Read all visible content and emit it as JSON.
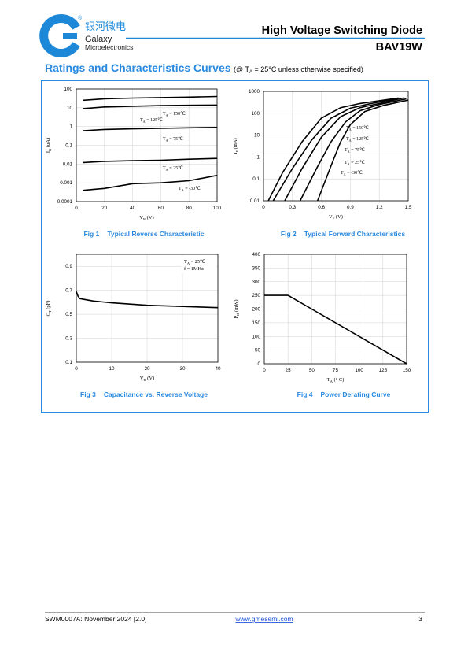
{
  "header": {
    "registered": "®",
    "brand_cn": "银河微电",
    "brand": "Galaxy",
    "brand_sub": "Microelectronics",
    "title": "High Voltage Switching Diode",
    "part": "BAV19W"
  },
  "section": {
    "title": "Ratings and Characteristics Curves",
    "condition": [
      "(@ T",
      "A",
      " = 25°C unless otherwise specified)"
    ]
  },
  "chart_data": [
    {
      "type": "line",
      "figure": "Fig 1",
      "title": "Typical Reverse Characteristic",
      "x_label": "VR (V)",
      "y_label": "IR (uA)",
      "log_y": true,
      "grid": true,
      "xlim": [
        0,
        100
      ],
      "xticks": [
        0,
        20,
        40,
        60,
        80,
        100
      ],
      "ylim": [
        0.0001,
        100
      ],
      "yticks": [
        0.0001,
        0.001,
        0.01,
        0.1,
        1,
        10,
        100
      ],
      "x": [
        5,
        20,
        40,
        60,
        80,
        100
      ],
      "series": [
        {
          "name": "TA = 150℃",
          "color": "#000000",
          "values": [
            25,
            30,
            33,
            35,
            37,
            40
          ]
        },
        {
          "name": "TA = 125℃",
          "color": "#000000",
          "values": [
            9,
            11,
            12,
            13,
            13.5,
            14
          ]
        },
        {
          "name": "TA = 75℃",
          "color": "#000000",
          "values": [
            0.6,
            0.7,
            0.75,
            0.8,
            0.85,
            0.9
          ]
        },
        {
          "name": "TA = 25℃",
          "color": "#000000",
          "values": [
            0.012,
            0.014,
            0.015,
            0.016,
            0.018,
            0.02
          ]
        },
        {
          "name": "TA = -30℃",
          "color": "#000000",
          "values": [
            0.0004,
            0.0005,
            0.0009,
            0.001,
            0.0013,
            0.0025
          ]
        }
      ]
    },
    {
      "type": "line",
      "figure": "Fig 2",
      "title": "Typical Forward Characteristics",
      "x_label": "VF (V)",
      "y_label": "IF (mA)",
      "log_y": true,
      "grid": true,
      "xlim": [
        0,
        1.5
      ],
      "xticks": [
        0,
        0.3,
        0.6,
        0.9,
        1.2,
        1.5
      ],
      "ylim": [
        0.01,
        1000
      ],
      "yticks": [
        0.01,
        0.1,
        1,
        10,
        100,
        1000
      ],
      "series": [
        {
          "name": "TA = 150℃",
          "color": "#000000",
          "x": [
            0.05,
            0.2,
            0.4,
            0.6,
            0.8,
            1.0,
            1.4
          ],
          "values": [
            0.01,
            0.2,
            5,
            60,
            180,
            280,
            500
          ]
        },
        {
          "name": "TA = 125℃",
          "color": "#000000",
          "x": [
            0.1,
            0.3,
            0.5,
            0.7,
            0.9,
            1.1,
            1.42
          ],
          "values": [
            0.01,
            0.3,
            6,
            60,
            170,
            270,
            500
          ]
        },
        {
          "name": "TA = 75℃",
          "color": "#000000",
          "x": [
            0.22,
            0.4,
            0.6,
            0.8,
            1.0,
            1.2,
            1.45
          ],
          "values": [
            0.01,
            0.3,
            8,
            70,
            180,
            280,
            500
          ]
        },
        {
          "name": "TA = 25℃",
          "color": "#000000",
          "x": [
            0.38,
            0.55,
            0.7,
            0.85,
            1.0,
            1.2,
            1.48
          ],
          "values": [
            0.01,
            0.3,
            5,
            40,
            130,
            250,
            450
          ]
        },
        {
          "name": "TA = -30℃",
          "color": "#000000",
          "x": [
            0.56,
            0.7,
            0.8,
            0.9,
            1.05,
            1.25,
            1.5
          ],
          "values": [
            0.01,
            0.4,
            5,
            30,
            120,
            230,
            400
          ]
        }
      ]
    },
    {
      "type": "line",
      "figure": "Fig 3",
      "title": "Capacitance vs. Reverse Voltage",
      "x_label": "VR (V)",
      "y_label": "CT (pF)",
      "grid": true,
      "xlim": [
        0,
        40
      ],
      "xticks": [
        0,
        10,
        20,
        30,
        40
      ],
      "ylim": [
        0.1,
        1.0
      ],
      "yticks": [
        0.1,
        0.3,
        0.5,
        0.7,
        0.9
      ],
      "annotations": [
        "TA = 25℃",
        "f = 1MHz"
      ],
      "x": [
        0,
        0.5,
        1,
        2,
        5,
        10,
        20,
        30,
        40
      ],
      "series": [
        {
          "color": "#000000",
          "values": [
            0.69,
            0.65,
            0.63,
            0.625,
            0.61,
            0.595,
            0.575,
            0.565,
            0.555
          ]
        }
      ]
    },
    {
      "type": "line",
      "figure": "Fig 4",
      "title": "Power Derating Curve",
      "x_label": "TA (° C)",
      "y_label": "PD (mW)",
      "grid": true,
      "xlim": [
        0,
        150
      ],
      "xticks": [
        0,
        25,
        50,
        75,
        100,
        125,
        150
      ],
      "ylim": [
        0,
        400
      ],
      "yticks": [
        0,
        50,
        100,
        150,
        200,
        250,
        300,
        350,
        400
      ],
      "x": [
        0,
        25,
        150
      ],
      "series": [
        {
          "color": "#000000",
          "values": [
            250,
            250,
            0
          ]
        }
      ]
    }
  ],
  "footer": {
    "doc": "SWM0007A: November 2024 [2.0]",
    "url": "www.gmesemi.com",
    "page": "3"
  }
}
